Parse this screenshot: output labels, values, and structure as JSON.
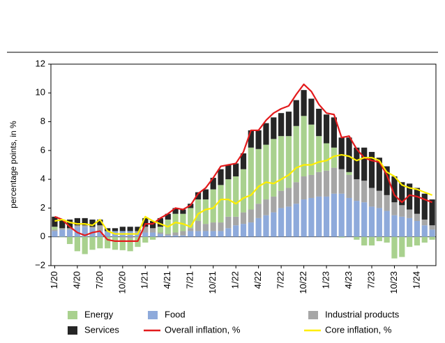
{
  "chart_data": {
    "type": "stacked_bar_line",
    "y_label": "percentage points, in %",
    "categories": [
      "1/20",
      null,
      null,
      "4/20",
      null,
      null,
      "7/20",
      null,
      null,
      "10/20",
      null,
      null,
      "1/21",
      null,
      null,
      "4/21",
      null,
      null,
      "7/21",
      null,
      null,
      "10/21",
      null,
      null,
      "1/22",
      null,
      null,
      "4/22",
      null,
      null,
      "7/22",
      null,
      null,
      "10/22",
      null,
      null,
      "1/23",
      null,
      null,
      "4/23",
      null,
      null,
      "7/23",
      null,
      null,
      "10/23",
      null,
      null,
      "1/24",
      null,
      null
    ],
    "ylim": [
      -2,
      12
    ],
    "yticks": [
      {
        "value": -2,
        "label": "−2"
      },
      0,
      2,
      4,
      6,
      8,
      10,
      12
    ],
    "series": [
      {
        "name": "Food",
        "kind": "bar",
        "color": "#8eaadb",
        "values": [
          0.4,
          0.5,
          0.5,
          0.7,
          0.7,
          0.6,
          0.4,
          0.4,
          0.4,
          0.4,
          0.4,
          0.3,
          0.3,
          0.3,
          0.2,
          0.1,
          0.1,
          0.1,
          0.4,
          0.4,
          0.4,
          0.4,
          0.4,
          0.6,
          0.8,
          0.9,
          1.0,
          1.3,
          1.5,
          1.7,
          2.0,
          2.1,
          2.3,
          2.6,
          2.7,
          2.8,
          2.8,
          3.0,
          3.0,
          2.7,
          2.5,
          2.4,
          2.1,
          2.0,
          1.8,
          1.5,
          1.4,
          1.3,
          1.1,
          0.8,
          0.5
        ]
      },
      {
        "name": "Industrial products",
        "kind": "bar",
        "color": "#a6a6a6",
        "values": [
          0.1,
          0.1,
          0.1,
          0.1,
          0.1,
          0.1,
          0.4,
          0.0,
          0.0,
          -0.03,
          -0.1,
          0.1,
          0.4,
          0.3,
          0.1,
          0.1,
          0.2,
          0.3,
          0.2,
          0.7,
          0.5,
          0.6,
          0.6,
          0.8,
          0.6,
          0.8,
          0.9,
          1.0,
          1.1,
          1.1,
          1.2,
          1.3,
          1.5,
          1.6,
          1.6,
          1.7,
          1.8,
          1.8,
          1.7,
          1.6,
          1.5,
          1.5,
          1.3,
          1.2,
          1.1,
          0.9,
          0.8,
          0.6,
          0.5,
          0.4,
          0.3
        ]
      },
      {
        "name": "Energy",
        "kind": "bar",
        "color": "#a9d18e",
        "values": [
          0.2,
          -0.03,
          -0.5,
          -1.0,
          -1.2,
          -0.9,
          -0.8,
          -0.8,
          -0.9,
          -0.9,
          -0.9,
          -0.7,
          -0.4,
          -0.2,
          0.4,
          1.0,
          1.3,
          1.2,
          1.4,
          1.5,
          1.7,
          2.3,
          2.6,
          2.6,
          2.8,
          3.0,
          4.3,
          3.8,
          3.8,
          4.0,
          3.8,
          3.6,
          3.9,
          4.2,
          3.5,
          2.5,
          1.9,
          1.4,
          -0.05,
          0.2,
          -0.2,
          -0.6,
          -0.6,
          -0.3,
          -0.4,
          -1.5,
          -1.4,
          -0.7,
          -0.6,
          -0.4,
          -0.2
        ]
      },
      {
        "name": "Services",
        "kind": "bar",
        "color": "#262626",
        "values": [
          0.7,
          0.6,
          0.6,
          0.5,
          0.5,
          0.5,
          0.4,
          0.2,
          0.2,
          0.3,
          0.3,
          0.3,
          0.6,
          0.5,
          0.6,
          0.4,
          0.4,
          0.3,
          0.3,
          0.5,
          0.7,
          0.8,
          1.1,
          1.0,
          0.9,
          1.1,
          1.2,
          1.3,
          1.5,
          1.5,
          1.6,
          1.7,
          1.8,
          1.8,
          1.8,
          1.9,
          2.0,
          2.1,
          2.2,
          2.4,
          2.2,
          2.3,
          2.5,
          2.3,
          2.0,
          1.8,
          1.6,
          1.8,
          1.8,
          1.8,
          1.8
        ]
      },
      {
        "name": "Overall inflation, %",
        "kind": "line",
        "color": "#e31a1c",
        "values": [
          1.4,
          1.2,
          0.7,
          0.3,
          0.1,
          0.3,
          0.4,
          -0.2,
          -0.3,
          -0.3,
          -0.3,
          -0.3,
          0.9,
          0.9,
          1.3,
          1.6,
          2.0,
          1.9,
          2.2,
          3.0,
          3.4,
          4.1,
          4.9,
          5.0,
          5.1,
          5.9,
          7.4,
          7.4,
          8.1,
          8.6,
          8.9,
          9.1,
          9.9,
          10.6,
          10.1,
          9.2,
          8.6,
          8.5,
          6.9,
          7.0,
          6.1,
          5.5,
          5.3,
          5.2,
          4.3,
          2.9,
          2.4,
          2.9,
          2.8,
          2.6,
          2.4
        ]
      },
      {
        "name": "Core inflation, %",
        "kind": "line",
        "color": "#ffee00",
        "values": [
          1.1,
          1.2,
          1.0,
          0.9,
          0.9,
          0.8,
          1.2,
          0.4,
          0.2,
          0.2,
          0.2,
          0.2,
          1.4,
          1.1,
          0.9,
          0.7,
          1.0,
          0.9,
          0.7,
          1.6,
          1.9,
          2.0,
          2.6,
          2.6,
          2.3,
          2.7,
          2.9,
          3.5,
          3.8,
          3.7,
          4.0,
          4.3,
          4.8,
          5.0,
          5.0,
          5.2,
          5.3,
          5.6,
          5.7,
          5.6,
          5.3,
          5.5,
          5.5,
          5.3,
          4.5,
          4.2,
          3.6,
          3.4,
          3.3,
          3.1,
          2.9
        ]
      }
    ],
    "legend_order": [
      2,
      0,
      1,
      3,
      4,
      5
    ]
  }
}
